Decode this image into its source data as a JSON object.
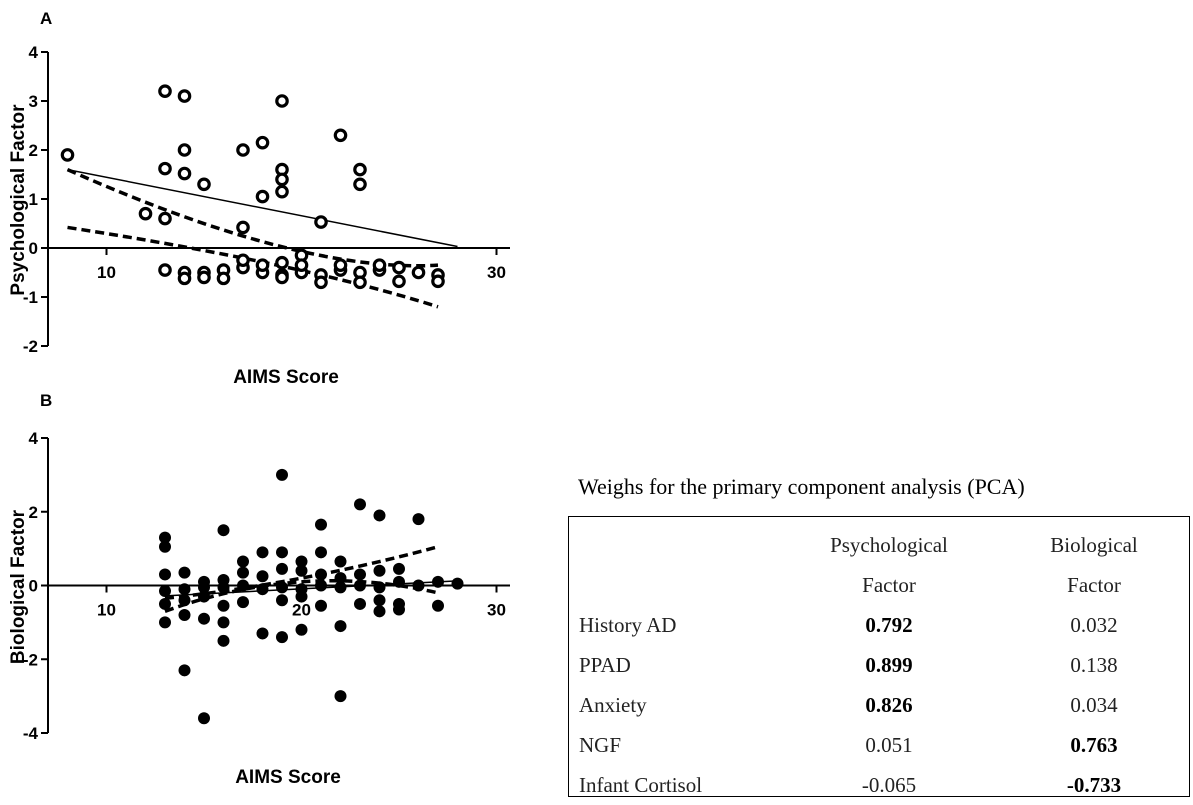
{
  "chart_data": [
    {
      "panel_label": "A",
      "type": "scatter",
      "marker": "open-circle",
      "xlabel": "AIMS Score",
      "ylabel": "Psychological Factor",
      "xlim": [
        7,
        31
      ],
      "ylim": [
        -2,
        4
      ],
      "xticks": [
        10,
        30
      ],
      "yticks": [
        -2,
        -1,
        0,
        1,
        2,
        3,
        4
      ],
      "regression": {
        "intercept": 1.6,
        "slope": -0.0785,
        "x_range": [
          8,
          28
        ]
      },
      "confidence_band": {
        "upper": [
          [
            8,
            1.6
          ],
          [
            20,
            0.05
          ],
          [
            27,
            -0.35
          ]
        ],
        "lower": [
          [
            8,
            0.42
          ],
          [
            20,
            -0.35
          ],
          [
            27,
            -1.2
          ]
        ]
      },
      "points": [
        [
          8,
          1.9
        ],
        [
          13,
          3.2
        ],
        [
          14,
          3.1
        ],
        [
          19,
          3.0
        ],
        [
          14,
          2.0
        ],
        [
          17,
          2.0
        ],
        [
          18,
          2.15
        ],
        [
          22,
          2.3
        ],
        [
          13,
          1.62
        ],
        [
          14,
          1.52
        ],
        [
          15,
          1.3
        ],
        [
          19,
          1.6
        ],
        [
          19,
          1.4
        ],
        [
          18,
          1.05
        ],
        [
          19,
          1.15
        ],
        [
          23,
          1.6
        ],
        [
          23,
          1.3
        ],
        [
          12,
          0.7
        ],
        [
          13,
          0.6
        ],
        [
          17,
          0.42
        ],
        [
          21,
          0.53
        ],
        [
          13,
          -0.45
        ],
        [
          14,
          -0.5
        ],
        [
          15,
          -0.5
        ],
        [
          16,
          -0.45
        ],
        [
          17,
          -0.4
        ],
        [
          18,
          -0.5
        ],
        [
          19,
          -0.55
        ],
        [
          20,
          -0.5
        ],
        [
          21,
          -0.55
        ],
        [
          22,
          -0.45
        ],
        [
          23,
          -0.5
        ],
        [
          24,
          -0.45
        ],
        [
          25,
          -0.4
        ],
        [
          26,
          -0.5
        ],
        [
          27,
          -0.55
        ],
        [
          14,
          -0.62
        ],
        [
          15,
          -0.6
        ],
        [
          16,
          -0.62
        ],
        [
          19,
          -0.6
        ],
        [
          21,
          -0.7
        ],
        [
          23,
          -0.7
        ],
        [
          25,
          -0.68
        ],
        [
          27,
          -0.68
        ],
        [
          17,
          -0.25
        ],
        [
          18,
          -0.35
        ],
        [
          19,
          -0.3
        ],
        [
          20,
          -0.15
        ],
        [
          20,
          -0.35
        ],
        [
          22,
          -0.35
        ],
        [
          24,
          -0.35
        ]
      ]
    },
    {
      "panel_label": "B",
      "type": "scatter",
      "marker": "filled-circle",
      "xlabel": "AIMS Score",
      "ylabel": "Biological Factor",
      "xlim": [
        7,
        31
      ],
      "ylim": [
        -4,
        4
      ],
      "xticks": [
        10,
        20,
        30
      ],
      "yticks": [
        -4,
        -2,
        0,
        2,
        4
      ],
      "regression": {
        "intercept": -0.28,
        "slope": 0.027,
        "x_range": [
          13,
          28
        ]
      },
      "confidence_band": {
        "upper": [
          [
            13,
            -0.35
          ],
          [
            20,
            0.2
          ],
          [
            27,
            1.05
          ]
        ],
        "lower": [
          [
            13,
            -0.7
          ],
          [
            20,
            0.1
          ],
          [
            27,
            -0.2
          ]
        ]
      },
      "points": [
        [
          19,
          3.0
        ],
        [
          23,
          2.2
        ],
        [
          24,
          1.9
        ],
        [
          26,
          1.8
        ],
        [
          16,
          1.5
        ],
        [
          21,
          1.65
        ],
        [
          13,
          1.3
        ],
        [
          13,
          1.05
        ],
        [
          18,
          0.9
        ],
        [
          19,
          0.9
        ],
        [
          20,
          0.65
        ],
        [
          21,
          0.9
        ],
        [
          22,
          0.65
        ],
        [
          25,
          0.45
        ],
        [
          17,
          0.65
        ],
        [
          13,
          0.3
        ],
        [
          14,
          0.35
        ],
        [
          15,
          0.1
        ],
        [
          16,
          0.15
        ],
        [
          17,
          0.35
        ],
        [
          18,
          0.25
        ],
        [
          19,
          0.45
        ],
        [
          20,
          0.4
        ],
        [
          21,
          0.3
        ],
        [
          22,
          0.2
        ],
        [
          23,
          0.3
        ],
        [
          24,
          0.4
        ],
        [
          25,
          0.1
        ],
        [
          27,
          0.1
        ],
        [
          28,
          0.05
        ],
        [
          13,
          -0.15
        ],
        [
          14,
          -0.1
        ],
        [
          15,
          -0.05
        ],
        [
          16,
          -0.05
        ],
        [
          17,
          0.0
        ],
        [
          18,
          -0.1
        ],
        [
          19,
          -0.05
        ],
        [
          20,
          -0.1
        ],
        [
          21,
          0.0
        ],
        [
          22,
          -0.05
        ],
        [
          23,
          0.0
        ],
        [
          24,
          -0.05
        ],
        [
          26,
          0.0
        ],
        [
          13,
          -0.5
        ],
        [
          14,
          -0.4
        ],
        [
          15,
          -0.3
        ],
        [
          16,
          -0.55
        ],
        [
          17,
          -0.45
        ],
        [
          19,
          -0.4
        ],
        [
          20,
          -0.3
        ],
        [
          21,
          -0.55
        ],
        [
          23,
          -0.5
        ],
        [
          24,
          -0.4
        ],
        [
          25,
          -0.5
        ],
        [
          27,
          -0.55
        ],
        [
          13,
          -1.0
        ],
        [
          14,
          -0.8
        ],
        [
          15,
          -0.9
        ],
        [
          16,
          -1.0
        ],
        [
          18,
          -1.3
        ],
        [
          19,
          -1.4
        ],
        [
          20,
          -1.2
        ],
        [
          22,
          -1.1
        ],
        [
          24,
          -0.7
        ],
        [
          25,
          -0.65
        ],
        [
          14,
          -2.3
        ],
        [
          16,
          -1.5
        ],
        [
          15,
          -3.6
        ],
        [
          22,
          -3.0
        ]
      ]
    }
  ],
  "pca_table": {
    "caption": "Weighs for the primary component analysis (PCA)",
    "header": {
      "row_label": "",
      "col1_line1": "Psychological",
      "col1_line2": "Factor",
      "col2_line1": "Biological",
      "col2_line2": "Factor"
    },
    "rows": [
      {
        "label": "History AD",
        "psychological": "0.792",
        "biological": "0.032",
        "bold": "psychological"
      },
      {
        "label": "PPAD",
        "psychological": "0.899",
        "biological": "0.138",
        "bold": "psychological"
      },
      {
        "label": "Anxiety",
        "psychological": "0.826",
        "biological": "0.034",
        "bold": "psychological"
      },
      {
        "label": "NGF",
        "psychological": "0.051",
        "biological": "0.763",
        "bold": "biological"
      },
      {
        "label": "Infant Cortisol",
        "psychological": "-0.065",
        "biological": "-0.733",
        "bold": "biological"
      }
    ]
  }
}
